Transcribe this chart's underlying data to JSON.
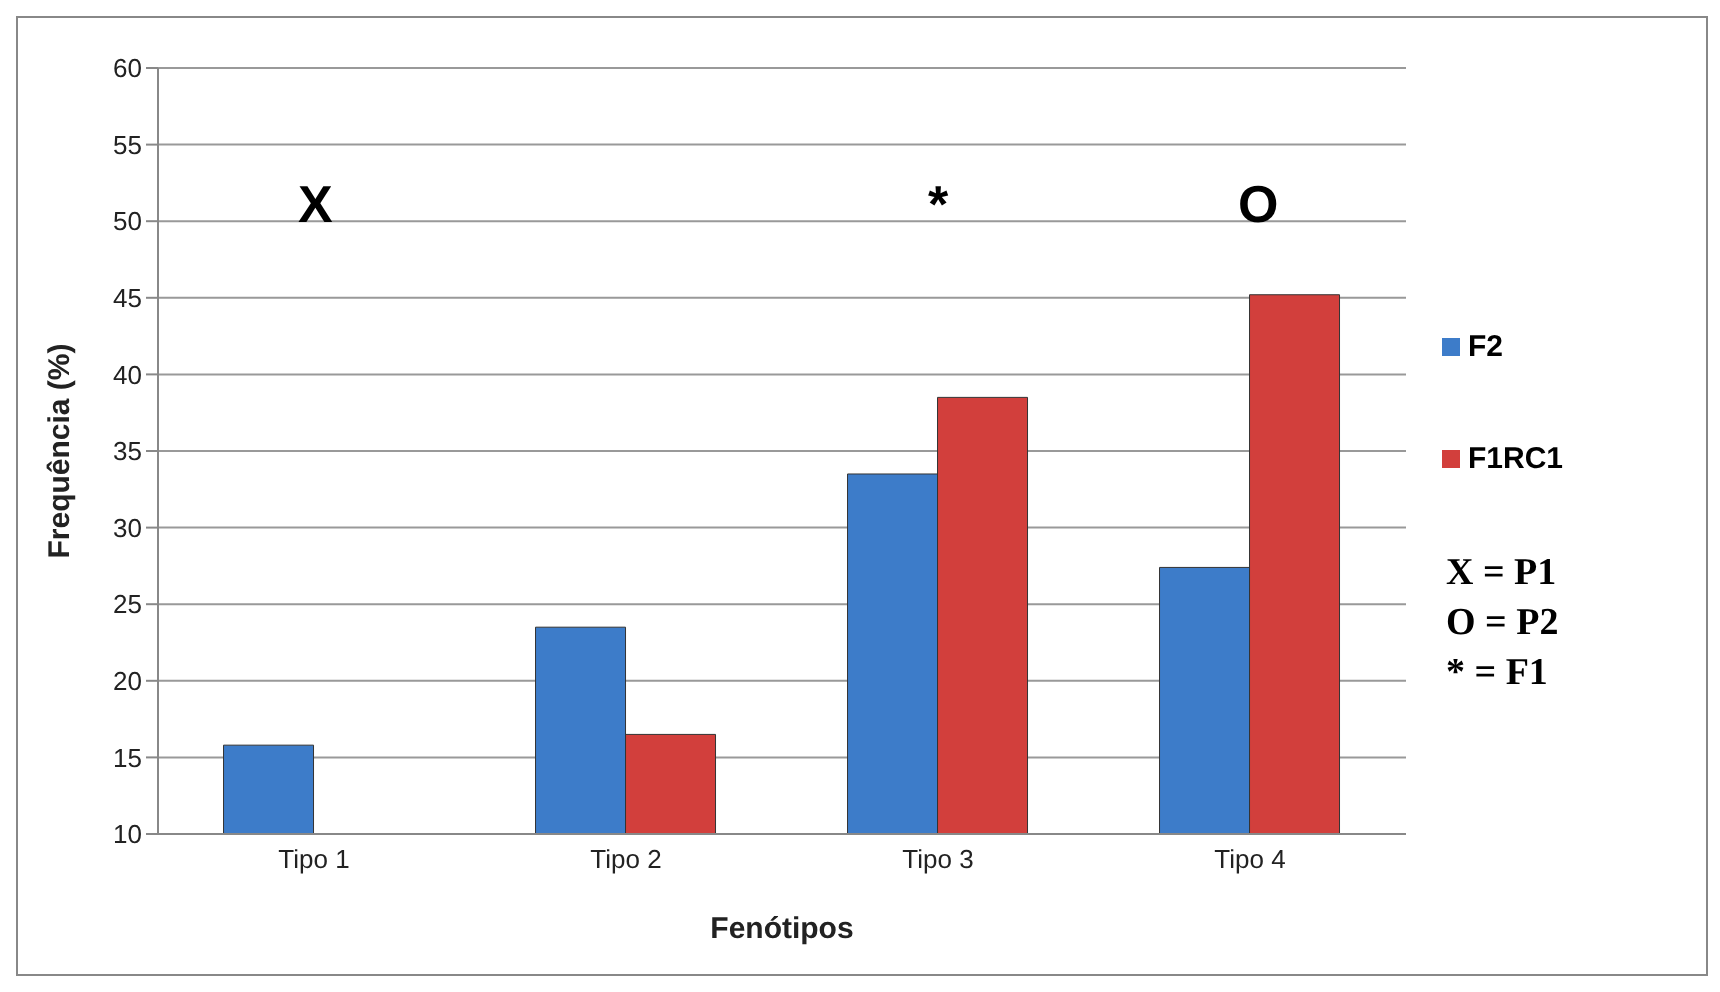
{
  "chart_data": {
    "type": "bar",
    "xlabel": "Fenótipos",
    "ylabel": "Frequência (%)",
    "categories": [
      "Tipo 1",
      "Tipo 2",
      "Tipo 3",
      "Tipo 4"
    ],
    "series": [
      {
        "name": "F2",
        "color": "#3d7cc9",
        "values": [
          15.8,
          23.5,
          33.5,
          27.4
        ]
      },
      {
        "name": "F1RC1",
        "color": "#d23f3c",
        "values": [
          null,
          16.5,
          38.5,
          45.2
        ]
      }
    ],
    "ylim": [
      10,
      60
    ],
    "yticks": [
      10,
      15,
      20,
      25,
      30,
      35,
      40,
      45,
      50,
      55,
      60
    ],
    "grid": "y",
    "legend": "right",
    "annotations": [
      "X",
      "*",
      "O",
      "X = P1",
      "O = P2",
      "* = F1"
    ]
  }
}
